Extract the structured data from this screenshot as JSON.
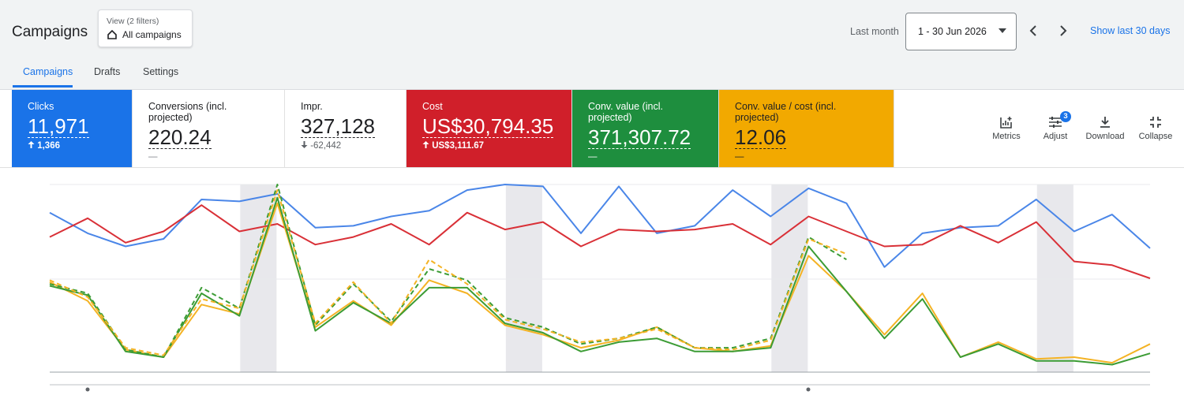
{
  "header": {
    "title": "Campaigns",
    "view_label": "View (2 filters)",
    "view_value": "All campaigns",
    "date_label": "Last month",
    "date_range": "1 - 30 Jun 2026",
    "show_last": "Show last 30 days"
  },
  "tabs": [
    "Campaigns",
    "Drafts",
    "Settings"
  ],
  "metrics": [
    {
      "label": "Clicks",
      "value": "11,971",
      "change": "1,366"
    },
    {
      "label": "Conversions (incl. projected)",
      "value": "220.24",
      "change": "—"
    },
    {
      "label": "Impr.",
      "value": "327,128",
      "change": "-62,442"
    },
    {
      "label": "Cost",
      "value": "US$30,794.35",
      "change": "US$3,111.67"
    },
    {
      "label": "Conv. value (incl. projected)",
      "value": "371,307.72",
      "change": "—"
    },
    {
      "label": "Conv. value / cost (incl. projected)",
      "value": "12.06",
      "change": "—"
    }
  ],
  "tools": {
    "items": [
      "Metrics",
      "Adjust",
      "Download",
      "Collapse"
    ],
    "adjust_badge": "3"
  },
  "chart_data": {
    "type": "line",
    "ylim": [
      0,
      100
    ],
    "series": [
      {
        "color": "#4a86e8",
        "values": [
          85,
          74,
          67,
          71,
          92,
          91,
          95,
          77,
          78,
          83,
          86,
          97,
          100,
          99,
          74,
          99,
          74,
          78,
          97,
          83,
          98,
          90,
          56,
          74,
          77,
          78,
          92,
          75,
          84,
          66
        ]
      },
      {
        "color": "#d93037",
        "values": [
          72,
          82,
          69,
          75,
          89,
          75,
          79,
          68,
          72,
          79,
          68,
          85,
          76,
          80,
          67,
          76,
          75,
          76,
          79,
          68,
          83,
          75,
          67,
          68,
          78,
          69,
          80,
          59,
          57,
          50
        ]
      },
      {
        "color": "#f4b324",
        "values": [
          48,
          38,
          12,
          8,
          36,
          31,
          90,
          24,
          38,
          25,
          49,
          42,
          25,
          20,
          13,
          17,
          24,
          13,
          11,
          14,
          62,
          43,
          20,
          42,
          8,
          16,
          7,
          8,
          5,
          15
        ]
      },
      {
        "color": "#3c9c35",
        "values": [
          46,
          41,
          11,
          8,
          42,
          30,
          93,
          22,
          37,
          26,
          45,
          45,
          26,
          21,
          11,
          16,
          18,
          11,
          11,
          13,
          67,
          43,
          18,
          39,
          8,
          15,
          6,
          6,
          4,
          10
        ]
      },
      {
        "color": "#3c9c35",
        "dashed": true,
        "values": [
          47,
          42,
          12,
          8,
          45,
          34,
          100,
          25,
          47,
          27,
          55,
          49,
          29,
          24,
          15,
          18,
          24,
          13,
          13,
          18,
          72,
          60,
          null,
          null,
          null,
          null,
          null,
          null,
          null,
          null
        ]
      },
      {
        "color": "#f4b324",
        "dashed": true,
        "values": [
          49,
          40,
          13,
          9,
          39,
          34,
          97,
          26,
          48,
          26,
          60,
          47,
          28,
          23,
          16,
          18,
          23,
          13,
          12,
          17,
          71,
          63,
          null,
          null,
          null,
          null,
          null,
          null,
          null,
          null
        ]
      }
    ]
  }
}
